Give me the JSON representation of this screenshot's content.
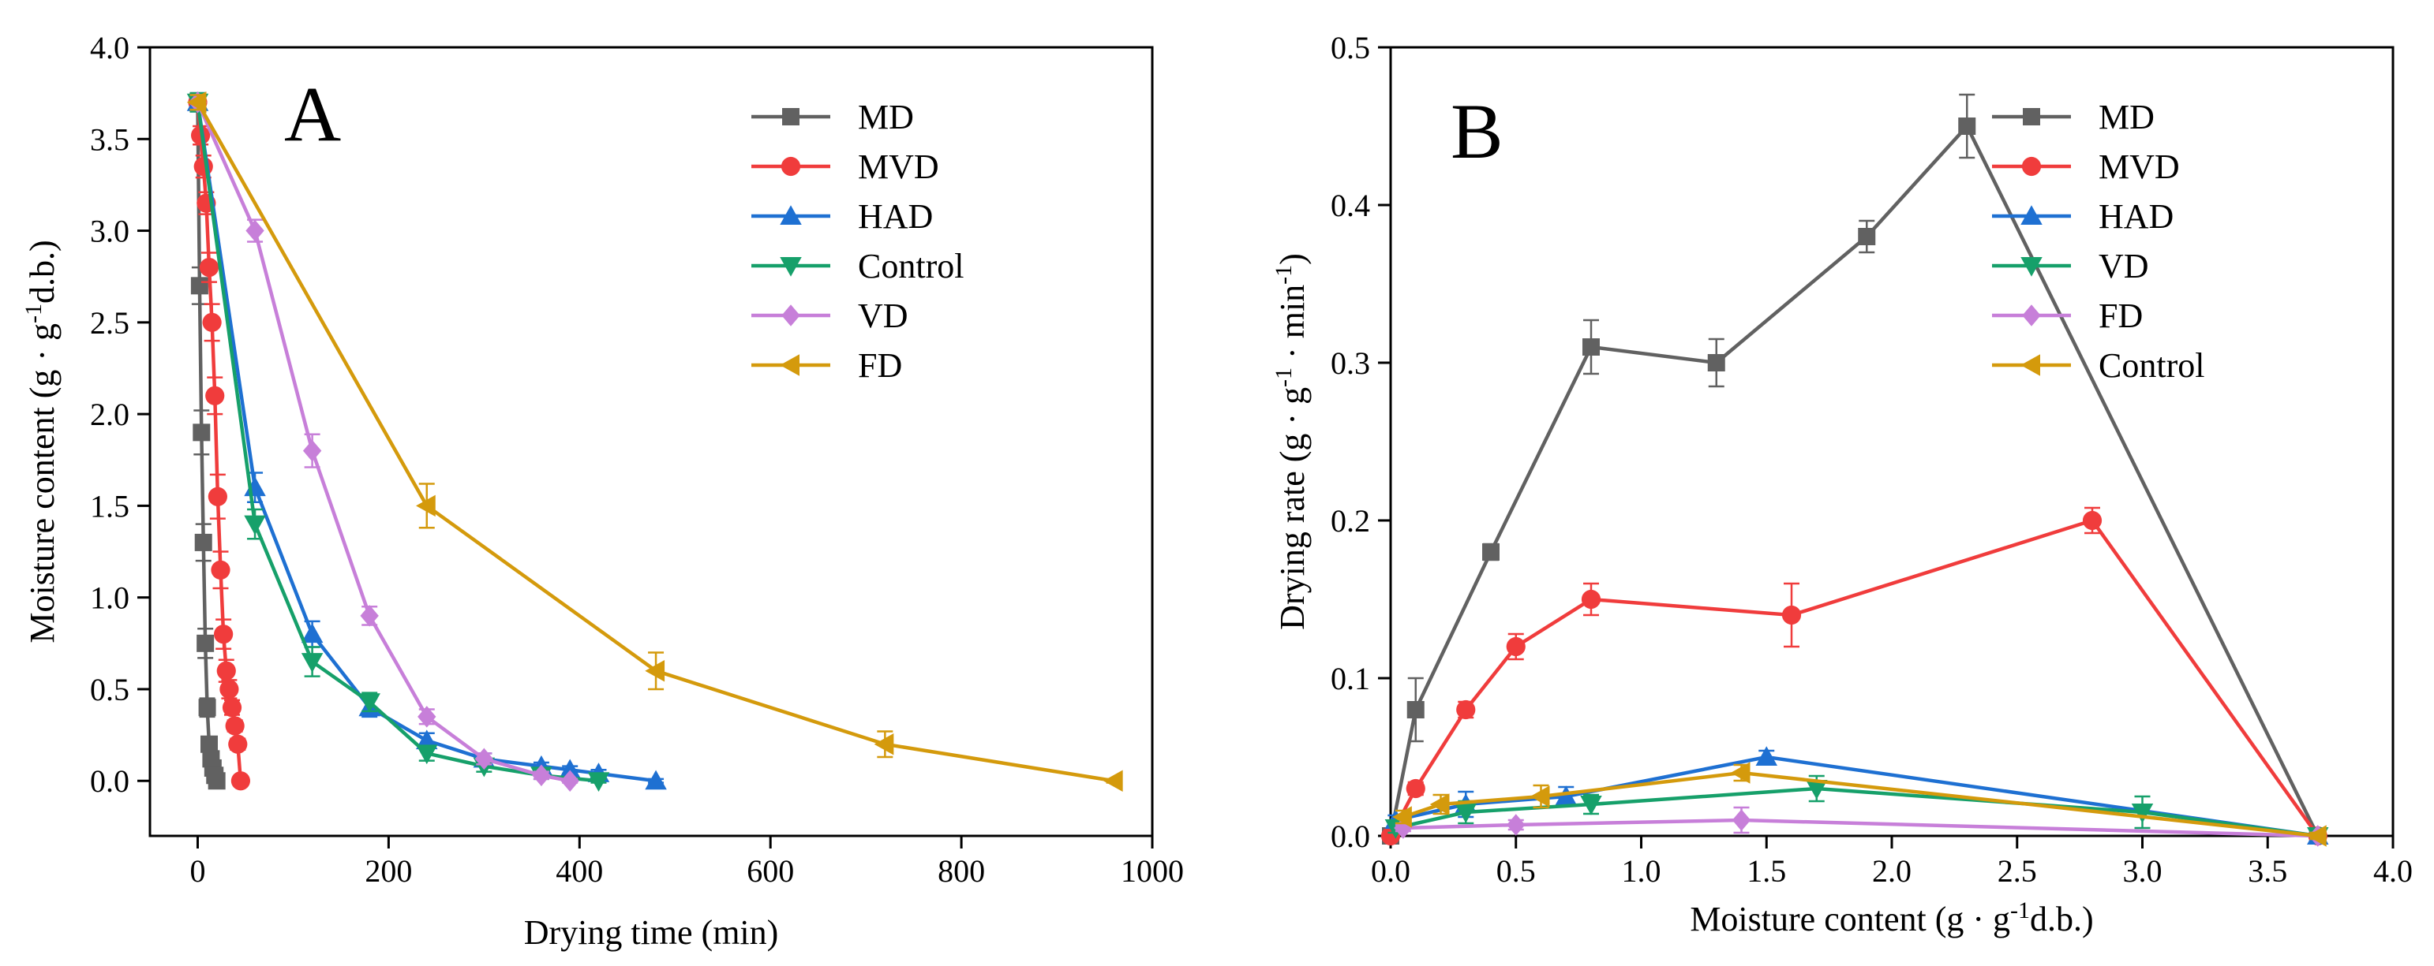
{
  "chart_data": [
    {
      "panel": "A",
      "type": "line",
      "title": "",
      "panel_label": "A",
      "xlabel": "Drying time (min)",
      "ylabel": "Moisture content (g · g",
      "ylabel_sup": "-1",
      "ylabel_tail": "d.b.)",
      "xlim": [
        -50,
        1000
      ],
      "ylim": [
        -0.3,
        4.0
      ],
      "xticks": [
        0,
        200,
        400,
        600,
        800,
        1000
      ],
      "xtick_labels": [
        "0",
        "200",
        "400",
        "600",
        "800",
        "1000"
      ],
      "yticks": [
        0.0,
        0.5,
        1.0,
        1.5,
        2.0,
        2.5,
        3.0,
        3.5,
        4.0
      ],
      "ytick_labels": [
        "0.0",
        "0.5",
        "1.0",
        "1.5",
        "2.0",
        "2.5",
        "3.0",
        "3.5",
        "4.0"
      ],
      "legend_position": "top-right",
      "series": [
        {
          "name": "MD",
          "color": "#616161",
          "marker": "square",
          "x": [
            0,
            2,
            4,
            6,
            8,
            10,
            12,
            14,
            16,
            18,
            20
          ],
          "y": [
            3.7,
            2.7,
            1.9,
            1.3,
            0.75,
            0.4,
            0.2,
            0.12,
            0.07,
            0.03,
            0.0
          ],
          "err": [
            0.05,
            0.1,
            0.12,
            0.1,
            0.08,
            0.05,
            0.04,
            0.03,
            0.02,
            0.01,
            0.01
          ]
        },
        {
          "name": "MVD",
          "color": "#f03c3c",
          "marker": "circle",
          "x": [
            0,
            3,
            6,
            9,
            12,
            15,
            18,
            21,
            24,
            27,
            30,
            33,
            36,
            39,
            42,
            45
          ],
          "y": [
            3.7,
            3.52,
            3.35,
            3.15,
            2.8,
            2.5,
            2.1,
            1.55,
            1.15,
            0.8,
            0.6,
            0.5,
            0.4,
            0.3,
            0.2,
            0.0
          ],
          "err": [
            0.04,
            0.05,
            0.06,
            0.06,
            0.08,
            0.1,
            0.1,
            0.12,
            0.1,
            0.08,
            0.06,
            0.05,
            0.04,
            0.03,
            0.03,
            0.01
          ]
        },
        {
          "name": "HAD",
          "color": "#1e70d2",
          "marker": "triangle-up",
          "x": [
            0,
            60,
            120,
            180,
            240,
            300,
            360,
            390,
            420,
            480
          ],
          "y": [
            3.7,
            1.6,
            0.8,
            0.4,
            0.22,
            0.12,
            0.08,
            0.06,
            0.04,
            0.0
          ],
          "err": [
            0.05,
            0.08,
            0.07,
            0.05,
            0.04,
            0.03,
            0.02,
            0.02,
            0.02,
            0.01
          ]
        },
        {
          "name": "Control",
          "color": "#16a06a",
          "marker": "triangle-down",
          "x": [
            0,
            60,
            120,
            180,
            240,
            300,
            360,
            420
          ],
          "y": [
            3.7,
            1.4,
            0.65,
            0.43,
            0.15,
            0.08,
            0.03,
            0.0
          ],
          "err": [
            0.05,
            0.08,
            0.08,
            0.05,
            0.04,
            0.03,
            0.02,
            0.01
          ]
        },
        {
          "name": "VD",
          "color": "#c77fd9",
          "marker": "diamond",
          "x": [
            0,
            60,
            120,
            180,
            240,
            300,
            360,
            390
          ],
          "y": [
            3.7,
            3.0,
            1.8,
            0.9,
            0.35,
            0.12,
            0.03,
            0.0
          ],
          "err": [
            0.04,
            0.06,
            0.09,
            0.05,
            0.04,
            0.03,
            0.02,
            0.01
          ]
        },
        {
          "name": "FD",
          "color": "#d49a0c",
          "marker": "triangle-left",
          "x": [
            0,
            240,
            480,
            720,
            960
          ],
          "y": [
            3.7,
            1.5,
            0.6,
            0.2,
            0.0
          ],
          "err": [
            0.04,
            0.12,
            0.1,
            0.07,
            0.01
          ]
        }
      ]
    },
    {
      "panel": "B",
      "type": "line",
      "title": "",
      "panel_label": "B",
      "xlabel": "Moisture content (g · g",
      "xlabel_sup": "-1",
      "xlabel_tail": "d.b.)",
      "ylabel": "Drying rate (g · g",
      "ylabel_sup": "-1",
      "ylabel_mid": " · min",
      "ylabel_sup2": "-1",
      "ylabel_tail": ")",
      "xlim": [
        0.0,
        4.0
      ],
      "ylim": [
        0.0,
        0.5
      ],
      "xticks": [
        0.0,
        0.5,
        1.0,
        1.5,
        2.0,
        2.5,
        3.0,
        3.5,
        4.0
      ],
      "xtick_labels": [
        "0.0",
        "0.5",
        "1.0",
        "1.5",
        "2.0",
        "2.5",
        "3.0",
        "3.5",
        "4.0"
      ],
      "yticks": [
        0.0,
        0.1,
        0.2,
        0.3,
        0.4,
        0.5
      ],
      "ytick_labels": [
        "0.0",
        "0.1",
        "0.2",
        "0.3",
        "0.4",
        "0.5"
      ],
      "legend_position": "top-right",
      "series": [
        {
          "name": "MD",
          "color": "#616161",
          "marker": "square",
          "x": [
            0.0,
            0.1,
            0.4,
            0.8,
            1.3,
            1.9,
            2.3,
            3.7
          ],
          "y": [
            0.0,
            0.08,
            0.18,
            0.31,
            0.3,
            0.38,
            0.45,
            0.0
          ],
          "err": [
            0.002,
            0.02,
            0.005,
            0.017,
            0.015,
            0.01,
            0.02,
            0.002
          ]
        },
        {
          "name": "MVD",
          "color": "#f03c3c",
          "marker": "circle",
          "x": [
            0.0,
            0.1,
            0.3,
            0.5,
            0.8,
            1.6,
            2.8,
            3.7
          ],
          "y": [
            0.0,
            0.03,
            0.08,
            0.12,
            0.15,
            0.14,
            0.2,
            0.0
          ],
          "err": [
            0.002,
            0.004,
            0.005,
            0.008,
            0.01,
            0.02,
            0.008,
            0.002
          ]
        },
        {
          "name": "HAD",
          "color": "#1e70d2",
          "marker": "triangle-up",
          "x": [
            0.02,
            0.3,
            0.7,
            1.5,
            3.7
          ],
          "y": [
            0.01,
            0.02,
            0.025,
            0.05,
            0.0
          ],
          "err": [
            0.003,
            0.008,
            0.006,
            0.004,
            0.002
          ]
        },
        {
          "name": "VD",
          "color": "#16a06a",
          "marker": "triangle-down",
          "x": [
            0.02,
            0.3,
            0.8,
            1.7,
            3.0,
            3.7
          ],
          "y": [
            0.005,
            0.015,
            0.02,
            0.03,
            0.015,
            0.0
          ],
          "err": [
            0.003,
            0.007,
            0.006,
            0.008,
            0.01,
            0.002
          ]
        },
        {
          "name": "FD",
          "color": "#c77fd9",
          "marker": "diamond",
          "x": [
            0.05,
            0.5,
            1.4,
            3.7
          ],
          "y": [
            0.005,
            0.007,
            0.01,
            0.0
          ],
          "err": [
            0.002,
            0.003,
            0.008,
            0.002
          ]
        },
        {
          "name": "Control",
          "color": "#d49a0c",
          "marker": "triangle-left",
          "x": [
            0.05,
            0.2,
            0.6,
            1.4,
            3.7
          ],
          "y": [
            0.012,
            0.02,
            0.025,
            0.04,
            0.0
          ],
          "err": [
            0.004,
            0.006,
            0.007,
            0.005,
            0.002
          ]
        }
      ]
    }
  ]
}
